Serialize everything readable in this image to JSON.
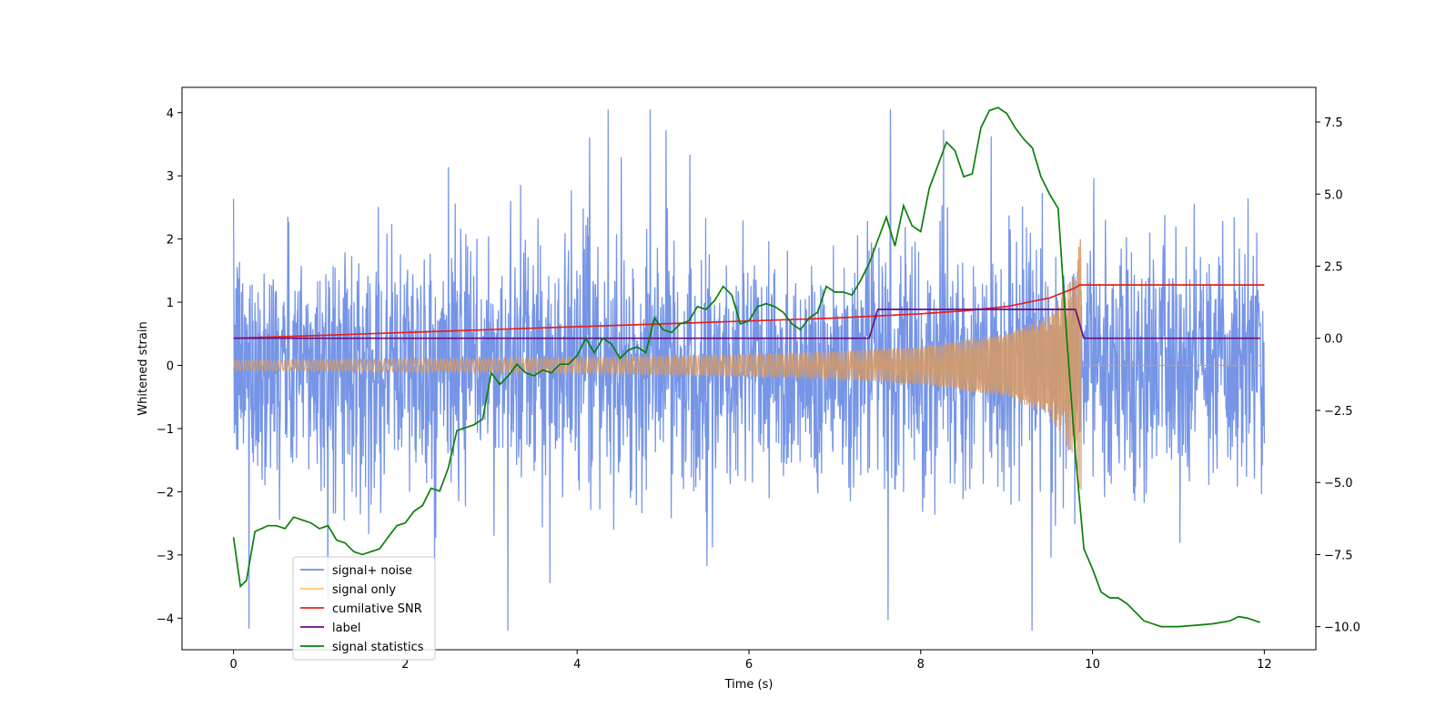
{
  "chart_data": {
    "type": "line",
    "xlabel": "Time (s)",
    "ylabel_left": "Whitened strain",
    "ylabel_right": "",
    "xlim": [
      -0.6,
      12.6
    ],
    "ylim_left": [
      -4.5,
      4.4
    ],
    "ylim_right": [
      -10.8,
      8.7
    ],
    "xticks": [
      0,
      2,
      4,
      6,
      8,
      10,
      12
    ],
    "yticks_left": [
      -4,
      -3,
      -2,
      -1,
      0,
      1,
      2,
      3,
      4
    ],
    "yticks_right": [
      -10.0,
      -7.5,
      -5.0,
      -2.5,
      0.0,
      2.5,
      5.0,
      7.5
    ],
    "grid": false,
    "legend_position": "lower-left",
    "series": [
      {
        "name": "signal+ noise",
        "axis": "left",
        "color": "#6f8fe6",
        "description_values": "dense noise, mostly within [-2.5, 2.8], occasional spikes to +4 and -4.2 over t in [0, 12]",
        "amplitude_envelope": {
          "t": [
            0,
            12
          ],
          "typical_abs": 1.4,
          "peak_abs": 4.1
        }
      },
      {
        "name": "signal only",
        "axis": "left",
        "color": "#ffbf5e",
        "chirp": {
          "t": [
            0,
            1,
            2,
            3,
            4,
            5,
            6,
            7,
            8,
            9,
            9.5,
            9.8,
            9.85
          ],
          "amplitude": [
            0.08,
            0.09,
            0.1,
            0.11,
            0.13,
            0.15,
            0.18,
            0.22,
            0.3,
            0.5,
            0.8,
            1.5,
            2.0
          ],
          "zero_after": 9.87
        }
      },
      {
        "name": "cumilative SNR",
        "axis": "right",
        "color": "#e8201e",
        "x": [
          0,
          1,
          2,
          3,
          4,
          5,
          6,
          7,
          8,
          8.5,
          9,
          9.5,
          9.8,
          9.85,
          10,
          11,
          12
        ],
        "y": [
          0.0,
          0.1,
          0.2,
          0.3,
          0.4,
          0.5,
          0.6,
          0.7,
          0.85,
          0.95,
          1.1,
          1.4,
          1.75,
          1.85,
          1.85,
          1.85,
          1.85
        ]
      },
      {
        "name": "label",
        "axis": "right",
        "color": "#6a0d83",
        "x": [
          0,
          7.4,
          7.5,
          9.8,
          9.9,
          11.95
        ],
        "y": [
          0.0,
          0.0,
          1.0,
          1.0,
          0.0,
          0.0
        ]
      },
      {
        "name": "signal statistics",
        "axis": "right",
        "color": "#0a7f0a",
        "x": [
          0,
          0.08,
          0.15,
          0.25,
          0.4,
          0.5,
          0.6,
          0.7,
          0.8,
          0.9,
          1.0,
          1.1,
          1.2,
          1.3,
          1.4,
          1.5,
          1.6,
          1.7,
          1.8,
          1.9,
          2.0,
          2.1,
          2.2,
          2.3,
          2.4,
          2.5,
          2.6,
          2.7,
          2.8,
          2.9,
          3.0,
          3.1,
          3.2,
          3.3,
          3.4,
          3.5,
          3.6,
          3.7,
          3.8,
          3.9,
          4.0,
          4.1,
          4.2,
          4.3,
          4.4,
          4.5,
          4.6,
          4.7,
          4.8,
          4.9,
          5.0,
          5.1,
          5.2,
          5.3,
          5.4,
          5.5,
          5.6,
          5.7,
          5.8,
          5.9,
          6.0,
          6.1,
          6.2,
          6.3,
          6.4,
          6.5,
          6.6,
          6.7,
          6.8,
          6.9,
          7.0,
          7.1,
          7.2,
          7.3,
          7.4,
          7.5,
          7.6,
          7.7,
          7.8,
          7.9,
          8.0,
          8.1,
          8.2,
          8.3,
          8.4,
          8.5,
          8.6,
          8.7,
          8.8,
          8.9,
          9.0,
          9.1,
          9.2,
          9.3,
          9.4,
          9.5,
          9.6,
          9.7,
          9.8,
          9.9,
          10.0,
          10.1,
          10.2,
          10.3,
          10.4,
          10.5,
          10.6,
          10.7,
          10.8,
          10.9,
          11.0,
          11.2,
          11.4,
          11.6,
          11.7,
          11.8,
          11.95
        ],
        "y": [
          -6.9,
          -8.6,
          -8.4,
          -6.7,
          -6.5,
          -6.5,
          -6.6,
          -6.2,
          -6.3,
          -6.4,
          -6.6,
          -6.5,
          -7.0,
          -7.1,
          -7.4,
          -7.5,
          -7.4,
          -7.3,
          -6.9,
          -6.5,
          -6.4,
          -6.0,
          -5.8,
          -5.2,
          -5.3,
          -4.5,
          -3.2,
          -3.1,
          -3.0,
          -2.8,
          -1.2,
          -1.6,
          -1.3,
          -0.9,
          -1.2,
          -1.3,
          -1.1,
          -1.2,
          -0.9,
          -0.9,
          -0.6,
          0.0,
          -0.5,
          0.0,
          -0.2,
          -0.7,
          -0.4,
          -0.3,
          -0.5,
          0.7,
          0.3,
          0.2,
          0.5,
          0.6,
          1.1,
          1.0,
          1.3,
          1.8,
          1.5,
          0.5,
          0.6,
          1.1,
          1.2,
          1.1,
          0.9,
          0.5,
          0.3,
          0.7,
          0.9,
          1.8,
          1.6,
          1.6,
          1.5,
          2.0,
          2.6,
          3.4,
          4.2,
          3.2,
          4.6,
          3.9,
          3.7,
          5.2,
          6.0,
          6.8,
          6.5,
          5.6,
          5.7,
          7.3,
          7.9,
          8.0,
          7.8,
          7.3,
          6.9,
          6.6,
          5.6,
          5.0,
          4.5,
          0.0,
          -4.0,
          -7.3,
          -8.0,
          -8.8,
          -9.0,
          -9.0,
          -9.2,
          -9.5,
          -9.8,
          -9.9,
          -10.0,
          -10.0,
          -10.0,
          -9.95,
          -9.9,
          -9.8,
          -9.65,
          -9.7,
          -9.85
        ]
      }
    ]
  }
}
